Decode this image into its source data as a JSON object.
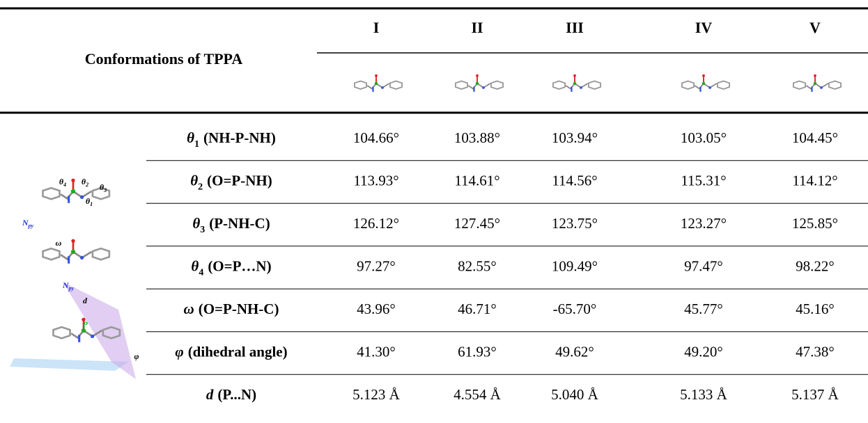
{
  "header": {
    "title": "Conformations of TPPA",
    "columns": [
      "I",
      "II",
      "III",
      "IV",
      "V"
    ]
  },
  "figure": {
    "labels": [
      {
        "symbol": "θ",
        "sub": "4"
      },
      {
        "symbol": "θ",
        "sub": "2"
      },
      {
        "symbol": "θ",
        "sub": "3"
      },
      {
        "symbol": "θ",
        "sub": "1"
      },
      {
        "symbol": "N",
        "sub": "py"
      },
      {
        "symbol": "ω"
      },
      {
        "symbol": "N",
        "sub": "py"
      },
      {
        "symbol": "d"
      },
      {
        "symbol": "P"
      },
      {
        "symbol": "φ"
      }
    ]
  },
  "rows": [
    {
      "symbol": "θ",
      "sub": "1",
      "name": "(NH-P-NH)",
      "values": [
        "104.66°",
        "103.88°",
        "103.94°",
        "103.05°",
        "104.45°"
      ]
    },
    {
      "symbol": "θ",
      "sub": "2",
      "name": "(O=P-NH)",
      "values": [
        "113.93°",
        "114.61°",
        "114.56°",
        "115.31°",
        "114.12°"
      ]
    },
    {
      "symbol": "θ",
      "sub": "3",
      "name": "(P-NH-C)",
      "values": [
        "126.12°",
        "127.45°",
        "123.75°",
        "123.27°",
        "125.85°"
      ]
    },
    {
      "symbol": "θ",
      "sub": "4",
      "name": "(O=P…N)",
      "values": [
        "97.27°",
        "82.55°",
        "109.49°",
        "97.47°",
        "98.22°"
      ]
    },
    {
      "symbol": "ω",
      "name": "(O=P-NH-C)",
      "values": [
        "43.96°",
        "46.71°",
        "-65.70°",
        "45.77°",
        "45.16°"
      ]
    },
    {
      "symbol": "φ",
      "name": "(dihedral angle)",
      "values": [
        "41.30°",
        "61.93°",
        "49.62°",
        "49.20°",
        "47.38°"
      ]
    },
    {
      "symbol": "d",
      "name": "(P...N)",
      "values": [
        "5.123 Å",
        "4.554 Å",
        "5.040 Å",
        "5.133 Å",
        "5.137 Å"
      ]
    }
  ]
}
